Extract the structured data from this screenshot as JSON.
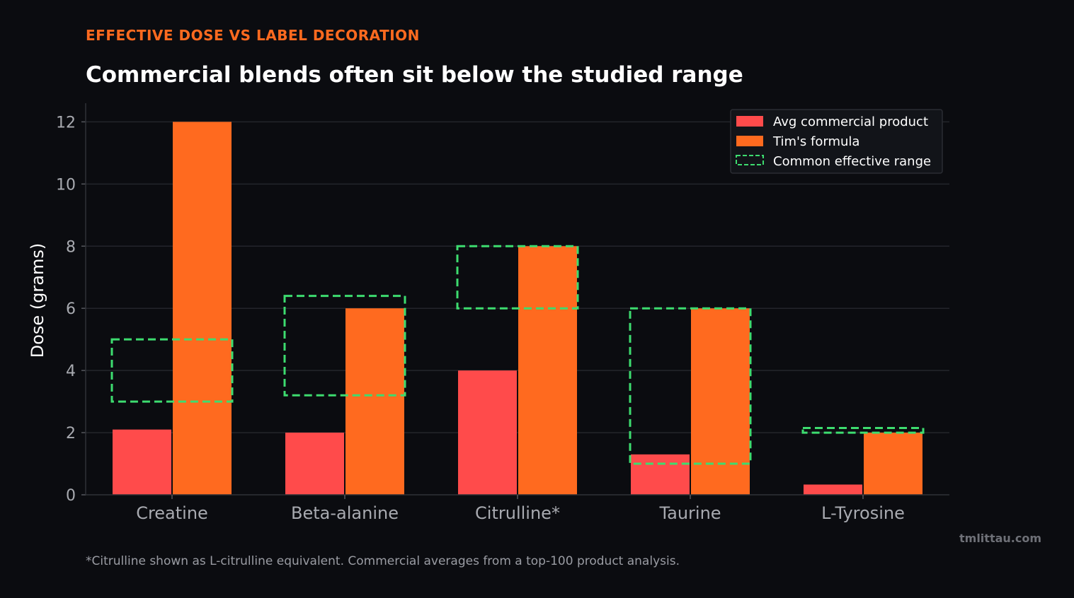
{
  "header": {
    "kicker": "EFFECTIVE DOSE VS LABEL DECORATION",
    "title": "Commercial blends often sit below the studied range"
  },
  "footnote": "*Citrulline shown as L-citrulline equivalent. Commercial averages from a top-100 product analysis.",
  "watermark": "tmlittau.com",
  "colors": {
    "commercial": "#ff4b4b",
    "formula": "#ff6a1f",
    "range": "#3ddc6f",
    "background": "#0b0c10",
    "grid": "#23252b",
    "axis_text": "#a8aab0"
  },
  "chart_data": {
    "type": "bar",
    "categories": [
      "Creatine",
      "Beta-alanine",
      "Citrulline*",
      "Taurine",
      "L-Tyrosine"
    ],
    "series": [
      {
        "name": "Avg commercial product",
        "values": [
          2.1,
          2.0,
          4.0,
          1.3,
          0.33
        ]
      },
      {
        "name": "Tim's formula",
        "values": [
          12.0,
          6.0,
          8.0,
          6.0,
          2.0
        ]
      }
    ],
    "ranges": {
      "name": "Common effective range",
      "values": [
        [
          3.0,
          5.0
        ],
        [
          3.2,
          6.4
        ],
        [
          6.0,
          8.0
        ],
        [
          1.0,
          6.0
        ],
        [
          2.0,
          2.15
        ]
      ]
    },
    "ylabel": "Dose (grams)",
    "xlabel": "",
    "ylim": [
      0,
      12.6
    ],
    "yticks": [
      0,
      2,
      4,
      6,
      8,
      10,
      12
    ],
    "grid": true,
    "legend_position": "top-right"
  }
}
